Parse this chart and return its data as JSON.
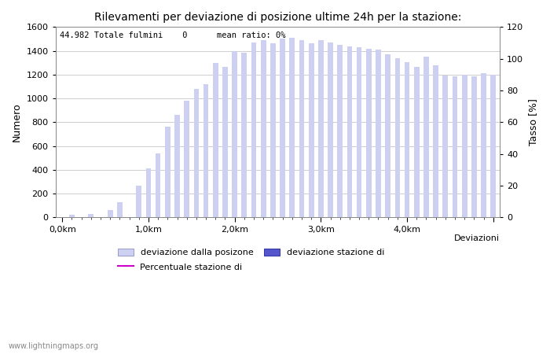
{
  "title": "Rilevamenti per deviazione di posizione ultime 24h per la stazione:",
  "subtitle": "44.982 Totale fulmini    0      mean ratio: 0%",
  "ylabel_left": "Numero",
  "ylabel_right": "Tasso [%]",
  "xlabel": "Deviazioni",
  "ylim_left": [
    0,
    1600
  ],
  "ylim_right": [
    0,
    120
  ],
  "xtick_positions": [
    0,
    9,
    18,
    27,
    36,
    45
  ],
  "xtick_labels": [
    "0,0km",
    "1,0km",
    "2,0km",
    "3,0km",
    "4,0km",
    ""
  ],
  "ytick_left": [
    0,
    200,
    400,
    600,
    800,
    1000,
    1200,
    1400,
    1600
  ],
  "ytick_right": [
    0,
    20,
    40,
    60,
    80,
    100,
    120
  ],
  "bar_values": [
    5,
    20,
    0,
    30,
    0,
    60,
    130,
    0,
    270,
    410,
    540,
    760,
    860,
    980,
    1080,
    1120,
    1300,
    1265,
    1395,
    1385,
    1470,
    1490,
    1465,
    1500,
    1510,
    1490,
    1465,
    1490,
    1470,
    1450,
    1440,
    1430,
    1420,
    1410,
    1370,
    1340,
    1305,
    1265,
    1350,
    1280,
    1195,
    1185,
    1200,
    1185,
    1215,
    1200
  ],
  "bar_color_light": "#cdd0f0",
  "bar_color_dark": "#5555cc",
  "bar_width": 0.55,
  "watermark": "www.lightningmaps.org",
  "background_color": "#ffffff",
  "grid_color": "#bbbbbb",
  "legend_label_1": "deviazione dalla posizone",
  "legend_label_2": "deviazione stazione di",
  "legend_label_3": "Percentuale stazione di",
  "legend_color_1": "#cdd0f0",
  "legend_color_2": "#5555cc",
  "legend_color_3": "#cc00cc"
}
